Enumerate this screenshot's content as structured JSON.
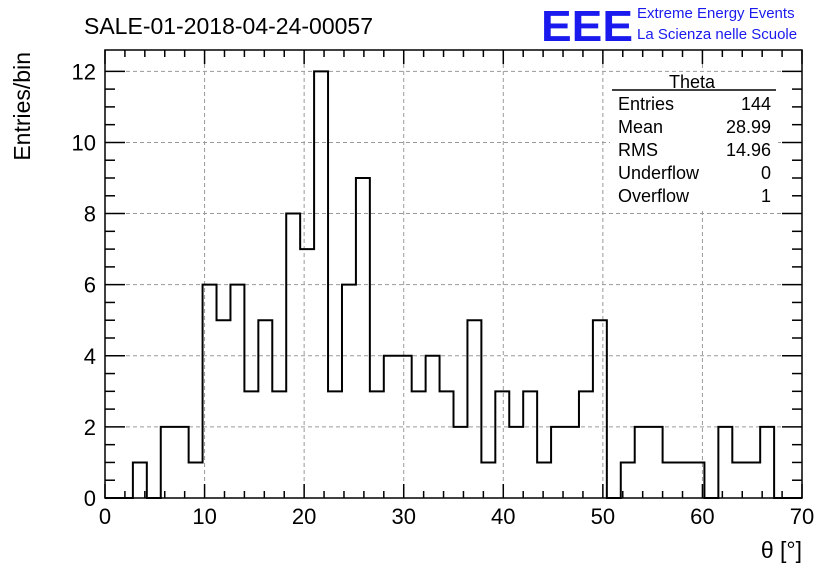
{
  "chart_data": {
    "type": "bar",
    "title": "SALE-01-2018-04-24-00057",
    "xlabel": "θ [°]",
    "ylabel": "Entries/bin",
    "xlim": [
      0,
      70
    ],
    "ylim": [
      0,
      12.6
    ],
    "grid": true,
    "bin_width": 1.4,
    "bin_counts": [
      0,
      0,
      1,
      0,
      2,
      2,
      1,
      6,
      5,
      6,
      3,
      5,
      3,
      8,
      7,
      12,
      3,
      6,
      9,
      3,
      4,
      4,
      3,
      4,
      3,
      2,
      5,
      1,
      3,
      2,
      3,
      1,
      2,
      2,
      3,
      5,
      0,
      1,
      2,
      2,
      1,
      1,
      1,
      0,
      2,
      1,
      1,
      2,
      0,
      0
    ],
    "x_ticks": [
      "0",
      "10",
      "20",
      "30",
      "40",
      "50",
      "60",
      "70"
    ],
    "y_ticks": [
      "0",
      "2",
      "4",
      "6",
      "8",
      "10",
      "12"
    ],
    "stats_box": {
      "title": "Theta",
      "rows": [
        {
          "label": "Entries",
          "value": "144"
        },
        {
          "label": "Mean",
          "value": "28.99"
        },
        {
          "label": "RMS",
          "value": "14.96"
        },
        {
          "label": "Underflow",
          "value": "0"
        },
        {
          "label": "Overflow",
          "value": "1"
        }
      ]
    }
  },
  "logo": {
    "mark": "EEE",
    "line1": "Extreme Energy Events",
    "line2": "La Scienza nelle Scuole",
    "color": "#1a1aee"
  }
}
